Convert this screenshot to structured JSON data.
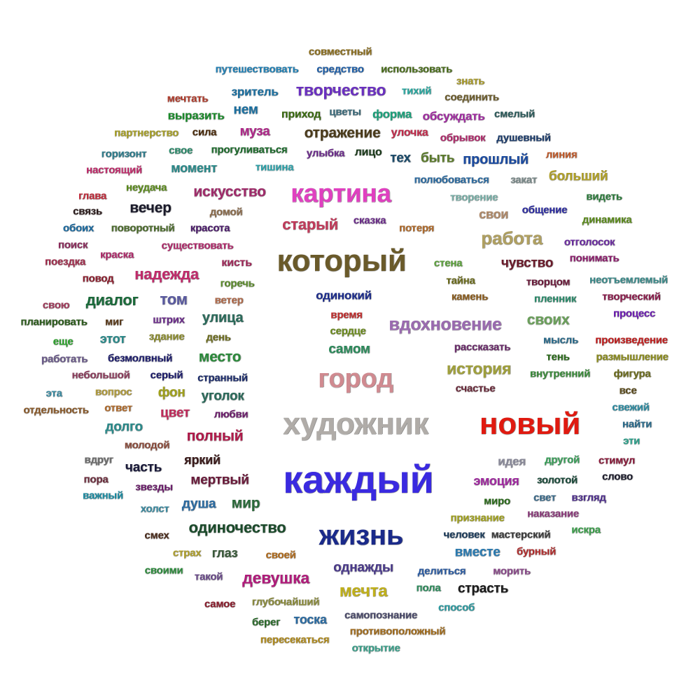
{
  "words": [
    {
      "text": "совместный",
      "color": "#8b6d1c"
    },
    {
      "text": "путешествовать",
      "color": "#1f7fb4"
    },
    {
      "text": "средство",
      "color": "#1f5fa8"
    },
    {
      "text": "использовать",
      "color": "#4a6d1c"
    },
    {
      "text": "знать",
      "color": "#a89a28"
    },
    {
      "text": "мечтать",
      "color": "#b03a2a"
    },
    {
      "text": "зритель",
      "color": "#1a6fa0"
    },
    {
      "text": "творчество",
      "color": "#6a2fc0"
    },
    {
      "text": "тихий",
      "color": "#27a8a0"
    },
    {
      "text": "соединить",
      "color": "#6b5b2a"
    },
    {
      "text": "выразить",
      "color": "#1a8a2a"
    },
    {
      "text": "нем",
      "color": "#1a6fa0"
    },
    {
      "text": "приход",
      "color": "#3a6a10"
    },
    {
      "text": "цветы",
      "color": "#3a6a7a"
    },
    {
      "text": "форма",
      "color": "#1aa07a"
    },
    {
      "text": "обсуждать",
      "color": "#a02aa0"
    },
    {
      "text": "смелый",
      "color": "#2a5a5a"
    },
    {
      "text": "партнерство",
      "color": "#a8a028"
    },
    {
      "text": "сила",
      "color": "#4a2a0a"
    },
    {
      "text": "муза",
      "color": "#b0288a"
    },
    {
      "text": "отражение",
      "color": "#4a3a1a"
    },
    {
      "text": "улочка",
      "color": "#c02a4a"
    },
    {
      "text": "обрывок",
      "color": "#b0286a"
    },
    {
      "text": "душевный",
      "color": "#1a3a6a"
    },
    {
      "text": "горизонт",
      "color": "#2a7a8a"
    },
    {
      "text": "свое",
      "color": "#2a8a6a"
    },
    {
      "text": "прогуливаться",
      "color": "#1a6a2a"
    },
    {
      "text": "улыбка",
      "color": "#6a2a8a"
    },
    {
      "text": "лицо",
      "color": "#1a3a1a"
    },
    {
      "text": "тех",
      "color": "#1a4a6a"
    },
    {
      "text": "быть",
      "color": "#5a7a2a"
    },
    {
      "text": "прошлый",
      "color": "#1a4aa0"
    },
    {
      "text": "линия",
      "color": "#c05a2a"
    },
    {
      "text": "настоящий",
      "color": "#c02a6a"
    },
    {
      "text": "момент",
      "color": "#2a8a8a"
    },
    {
      "text": "тишина",
      "color": "#2aa0a8"
    },
    {
      "text": "полюбоваться",
      "color": "#2a6aa0"
    },
    {
      "text": "закат",
      "color": "#7a8a8a"
    },
    {
      "text": "больший",
      "color": "#b0a028"
    },
    {
      "text": "глава",
      "color": "#c02a3a"
    },
    {
      "text": "неудача",
      "color": "#5a8a1a"
    },
    {
      "text": "искусство",
      "color": "#a02a6a"
    },
    {
      "text": "картина",
      "color": "#e040c0"
    },
    {
      "text": "творение",
      "color": "#7ab0a8"
    },
    {
      "text": "видеть",
      "color": "#2a7a3a"
    },
    {
      "text": "связь",
      "color": "#2a1a1a"
    },
    {
      "text": "вечер",
      "color": "#1a1a2a"
    },
    {
      "text": "домой",
      "color": "#8a6a4a"
    },
    {
      "text": "свои",
      "color": "#b08a6a"
    },
    {
      "text": "общение",
      "color": "#2a2aa0"
    },
    {
      "text": "обоих",
      "color": "#1a6aa0"
    },
    {
      "text": "поворотный",
      "color": "#4a6a2a"
    },
    {
      "text": "красота",
      "color": "#4a1a6a"
    },
    {
      "text": "старый",
      "color": "#c03a5a"
    },
    {
      "text": "сказка",
      "color": "#6a2a8a"
    },
    {
      "text": "потеря",
      "color": "#b06a2a"
    },
    {
      "text": "динамика",
      "color": "#5a8a1a"
    },
    {
      "text": "поиск",
      "color": "#8a2a5a"
    },
    {
      "text": "краска",
      "color": "#b0286a"
    },
    {
      "text": "существовать",
      "color": "#b0286a"
    },
    {
      "text": "работа",
      "color": "#b0a060"
    },
    {
      "text": "отголосок",
      "color": "#6a2aa0"
    },
    {
      "text": "поездка",
      "color": "#a02a4a"
    },
    {
      "text": "который",
      "color": "#6a5a2a"
    },
    {
      "text": "кисть",
      "color": "#a02a5a"
    },
    {
      "text": "стена",
      "color": "#5aa03a"
    },
    {
      "text": "чувство",
      "color": "#6a1a2a"
    },
    {
      "text": "понимать",
      "color": "#8a1a6a"
    },
    {
      "text": "повод",
      "color": "#8a1a2a"
    },
    {
      "text": "надежда",
      "color": "#c02a6a"
    },
    {
      "text": "горечь",
      "color": "#5a8a2a"
    },
    {
      "text": "тайна",
      "color": "#6a6a1a"
    },
    {
      "text": "творцом",
      "color": "#6a1a3a"
    },
    {
      "text": "неотъемлемый",
      "color": "#3a8a8a"
    },
    {
      "text": "одинокий",
      "color": "#1a2a8a"
    },
    {
      "text": "свою",
      "color": "#a03a5a"
    },
    {
      "text": "диалог",
      "color": "#1a6a3a"
    },
    {
      "text": "том",
      "color": "#5a5aa0"
    },
    {
      "text": "ветер",
      "color": "#b06a4a"
    },
    {
      "text": "камень",
      "color": "#8a5a1a"
    },
    {
      "text": "пленник",
      "color": "#2a8a6a"
    },
    {
      "text": "творческий",
      "color": "#8a1a4a"
    },
    {
      "text": "время",
      "color": "#c02a2a"
    },
    {
      "text": "процесс",
      "color": "#6a1ab0"
    },
    {
      "text": "планировать",
      "color": "#2a5a1a"
    },
    {
      "text": "миг",
      "color": "#5a3a1a"
    },
    {
      "text": "штрих",
      "color": "#6a2a8a"
    },
    {
      "text": "улица",
      "color": "#2a6a5a"
    },
    {
      "text": "сердце",
      "color": "#6a8a1a"
    },
    {
      "text": "вдохновение",
      "color": "#9a6ab0"
    },
    {
      "text": "своих",
      "color": "#6aa05a"
    },
    {
      "text": "еще",
      "color": "#2aa02a"
    },
    {
      "text": "этот",
      "color": "#2a8a8a"
    },
    {
      "text": "здание",
      "color": "#8a8a2a"
    },
    {
      "text": "день",
      "color": "#6a6a1a"
    },
    {
      "text": "самом",
      "color": "#2a8a5a"
    },
    {
      "text": "рассказать",
      "color": "#6a2a6a"
    },
    {
      "text": "мысль",
      "color": "#2a6a8a"
    },
    {
      "text": "произведение",
      "color": "#c01a1a"
    },
    {
      "text": "работать",
      "color": "#6a5a8a"
    },
    {
      "text": "безмолвный",
      "color": "#1a1a6a"
    },
    {
      "text": "место",
      "color": "#2a8a3a"
    },
    {
      "text": "тень",
      "color": "#2a6a1a"
    },
    {
      "text": "размышление",
      "color": "#8a8a1a"
    },
    {
      "text": "небольшой",
      "color": "#8a3a5a"
    },
    {
      "text": "серый",
      "color": "#1a1a6a"
    },
    {
      "text": "странный",
      "color": "#1a2a6a"
    },
    {
      "text": "город",
      "color": "#d08a90"
    },
    {
      "text": "история",
      "color": "#a0a03a"
    },
    {
      "text": "внутренний",
      "color": "#3a8a3a"
    },
    {
      "text": "фигура",
      "color": "#6a6a1a"
    },
    {
      "text": "эта",
      "color": "#3a8aa0"
    },
    {
      "text": "вопрос",
      "color": "#b09a3a"
    },
    {
      "text": "фон",
      "color": "#a0a01a"
    },
    {
      "text": "уголок",
      "color": "#2a6a5a"
    },
    {
      "text": "счастье",
      "color": "#6a2a3a"
    },
    {
      "text": "все",
      "color": "#5a4a1a"
    },
    {
      "text": "отдельность",
      "color": "#8a5a2a"
    },
    {
      "text": "ответ",
      "color": "#b06a2a"
    },
    {
      "text": "цвет",
      "color": "#c02a5a"
    },
    {
      "text": "любви",
      "color": "#6a1a6a"
    },
    {
      "text": "свежий",
      "color": "#2a8aa0"
    },
    {
      "text": "долго",
      "color": "#2a8a8a"
    },
    {
      "text": "художник",
      "color": "#b0aca8"
    },
    {
      "text": "новый",
      "color": "#e01a10"
    },
    {
      "text": "найти",
      "color": "#2a6a8a"
    },
    {
      "text": "молодой",
      "color": "#8a4a3a"
    },
    {
      "text": "полный",
      "color": "#b01a4a"
    },
    {
      "text": "эти",
      "color": "#2aa08a"
    },
    {
      "text": "вдруг",
      "color": "#6a6a6a"
    },
    {
      "text": "часть",
      "color": "#1a1a3a"
    },
    {
      "text": "яркий",
      "color": "#3a1a1a"
    },
    {
      "text": "идея",
      "color": "#8a8a9a"
    },
    {
      "text": "другой",
      "color": "#3aa05a"
    },
    {
      "text": "стимул",
      "color": "#8a1a3a"
    },
    {
      "text": "пора",
      "color": "#6a2a3a"
    },
    {
      "text": "звезды",
      "color": "#6a1a6a"
    },
    {
      "text": "мертвый",
      "color": "#6a1a3a"
    },
    {
      "text": "каждый",
      "color": "#3a2ae0"
    },
    {
      "text": "эмоция",
      "color": "#a02aa0"
    },
    {
      "text": "золотой",
      "color": "#1a4a3a"
    },
    {
      "text": "слово",
      "color": "#1a1a2a"
    },
    {
      "text": "важный",
      "color": "#1a8aa0"
    },
    {
      "text": "холст",
      "color": "#3a8aa0"
    },
    {
      "text": "душа",
      "color": "#2a6aa0"
    },
    {
      "text": "мир",
      "color": "#2a6a3a"
    },
    {
      "text": "миро",
      "color": "#2a6a1a"
    },
    {
      "text": "свет",
      "color": "#3a6a8a"
    },
    {
      "text": "взгляд",
      "color": "#4a2a8a"
    },
    {
      "text": "признание",
      "color": "#a0a01a"
    },
    {
      "text": "наказание",
      "color": "#8a3a7a"
    },
    {
      "text": "одиночество",
      "color": "#1a4a2a"
    },
    {
      "text": "искра",
      "color": "#3aa04a"
    },
    {
      "text": "смех",
      "color": "#4a2a1a"
    },
    {
      "text": "жизнь",
      "color": "#1a2a8a"
    },
    {
      "text": "человек",
      "color": "#1a3a5a"
    },
    {
      "text": "мастерский",
      "color": "#3a3a3a"
    },
    {
      "text": "страх",
      "color": "#b0a02a"
    },
    {
      "text": "глаз",
      "color": "#3a5a3a"
    },
    {
      "text": "своей",
      "color": "#b06a1a"
    },
    {
      "text": "вместе",
      "color": "#2a7ab0"
    },
    {
      "text": "бурный",
      "color": "#b02a2a"
    },
    {
      "text": "своими",
      "color": "#2a8a3a"
    },
    {
      "text": "такой",
      "color": "#6a4a8a"
    },
    {
      "text": "девушка",
      "color": "#b01a7a"
    },
    {
      "text": "однажды",
      "color": "#4a3a8a"
    },
    {
      "text": "делиться",
      "color": "#2a5aa0"
    },
    {
      "text": "морить",
      "color": "#8a4a8a"
    },
    {
      "text": "пола",
      "color": "#2a8a5a"
    },
    {
      "text": "страсть",
      "color": "#1a1a1a"
    },
    {
      "text": "мечта",
      "color": "#c0b01a"
    },
    {
      "text": "самое",
      "color": "#8a1a2a"
    },
    {
      "text": "глубочайший",
      "color": "#8a8a3a"
    },
    {
      "text": "способ",
      "color": "#2a9aa0"
    },
    {
      "text": "берег",
      "color": "#2a6a2a"
    },
    {
      "text": "тоска",
      "color": "#2a6aa0"
    },
    {
      "text": "самопознание",
      "color": "#4a4a6a"
    },
    {
      "text": "противоположный",
      "color": "#a06a1a"
    },
    {
      "text": "пересекаться",
      "color": "#b08a1a"
    },
    {
      "text": "открытие",
      "color": "#3aa08a"
    }
  ]
}
